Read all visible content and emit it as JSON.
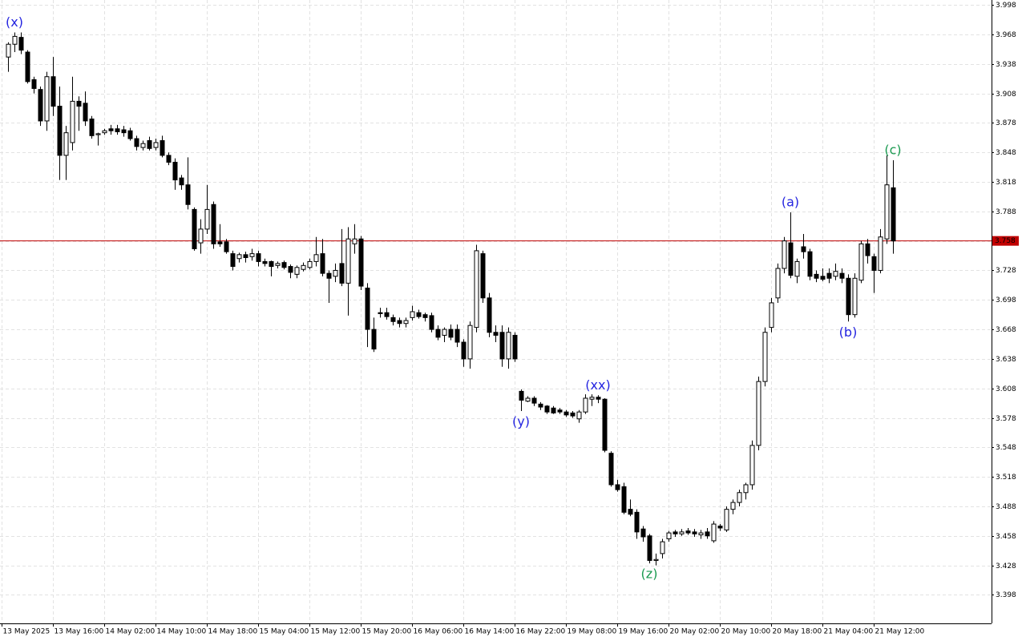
{
  "chart_data": {
    "type": "candlestick",
    "categories": [
      "13 May 2025",
      null,
      null,
      null,
      null,
      null,
      null,
      null,
      "13 May 16:00",
      null,
      null,
      null,
      null,
      null,
      null,
      null,
      "14 May 02:00",
      null,
      null,
      null,
      null,
      null,
      null,
      null,
      "14 May 10:00",
      null,
      null,
      null,
      null,
      null,
      null,
      null,
      "14 May 18:00",
      null,
      null,
      null,
      null,
      null,
      null,
      null,
      "15 May 04:00",
      null,
      null,
      null,
      null,
      null,
      null,
      null,
      "15 May 12:00",
      null,
      null,
      null,
      null,
      null,
      null,
      null,
      "15 May 20:00",
      null,
      null,
      null,
      null,
      null,
      null,
      null,
      "16 May 06:00",
      null,
      null,
      null,
      null,
      null,
      null,
      null,
      "16 May 14:00",
      null,
      null,
      null,
      null,
      null,
      null,
      null,
      "16 May 22:00",
      null,
      null,
      null,
      null,
      null,
      null,
      null,
      "19 May 08:00",
      null,
      null,
      null,
      null,
      null,
      null,
      null,
      "19 May 16:00",
      null,
      null,
      null,
      null,
      null,
      null,
      null,
      "20 May 02:00",
      null,
      null,
      null,
      null,
      null,
      null,
      null,
      "20 May 10:00",
      null,
      null,
      null,
      null,
      null,
      null,
      null,
      "20 May 18:00",
      null,
      null,
      null,
      null,
      null,
      null,
      null,
      "21 May 04:00",
      null,
      null,
      null,
      null,
      null,
      null,
      null,
      "21 May 12:00",
      null,
      null
    ],
    "open": [
      3.945,
      3.958,
      3.965,
      3.95,
      3.922,
      3.912,
      3.88,
      3.925,
      3.895,
      3.845,
      3.858,
      3.9,
      3.898,
      3.882,
      3.866,
      3.868,
      3.872,
      3.872,
      3.871,
      3.87,
      3.862,
      3.853,
      3.86,
      3.853,
      3.86,
      3.845,
      3.838,
      3.822,
      3.815,
      3.79,
      3.756,
      3.77,
      3.795,
      3.757,
      3.757,
      3.745,
      3.74,
      3.744,
      3.742,
      3.745,
      3.737,
      3.737,
      3.733,
      3.736,
      3.732,
      3.724,
      3.729,
      3.731,
      3.737,
      3.745,
      3.725,
      3.722,
      3.735,
      3.715,
      3.755,
      3.76,
      3.71,
      3.668,
      3.685,
      3.685,
      3.68,
      3.677,
      3.674,
      3.68,
      3.685,
      3.683,
      3.682,
      3.668,
      3.662,
      3.668,
      3.668,
      3.655,
      3.638,
      3.67,
      3.745,
      3.7,
      3.665,
      3.665,
      3.638,
      3.662,
      3.605,
      3.595,
      3.598,
      3.592,
      3.59,
      3.588,
      3.586,
      3.584,
      3.583,
      3.577,
      3.584,
      3.597,
      3.599,
      3.597,
      3.542,
      3.51,
      3.508,
      3.485,
      3.482,
      3.465,
      3.458,
      3.433,
      3.44,
      3.455,
      3.462,
      3.46,
      3.463,
      3.462,
      3.459,
      3.462,
      3.453,
      3.468,
      3.464,
      3.485,
      3.492,
      3.502,
      3.51,
      3.55,
      3.615,
      3.67,
      3.7,
      3.73,
      3.756,
      3.722,
      3.752,
      3.747,
      3.724,
      3.722,
      3.725,
      3.722,
      3.725,
      3.72,
      3.683,
      3.718,
      3.755,
      3.742,
      3.728,
      3.76,
      3.812
    ],
    "high": [
      3.96,
      3.97,
      3.97,
      3.952,
      3.925,
      3.915,
      3.93,
      3.945,
      3.915,
      3.875,
      3.925,
      3.905,
      3.91,
      3.885,
      3.868,
      3.872,
      3.876,
      3.876,
      3.875,
      3.873,
      3.865,
      3.86,
      3.864,
      3.862,
      3.865,
      3.848,
      3.842,
      3.825,
      3.843,
      3.792,
      3.78,
      3.815,
      3.798,
      3.775,
      3.76,
      3.748,
      3.746,
      3.747,
      3.75,
      3.748,
      3.74,
      3.738,
      3.737,
      3.738,
      3.734,
      3.733,
      3.736,
      3.74,
      3.762,
      3.76,
      3.728,
      3.735,
      3.77,
      3.772,
      3.775,
      3.763,
      3.715,
      3.68,
      3.69,
      3.69,
      3.683,
      3.68,
      3.68,
      3.692,
      3.688,
      3.685,
      3.685,
      3.672,
      3.67,
      3.673,
      3.673,
      3.658,
      3.676,
      3.754,
      3.748,
      3.705,
      3.672,
      3.672,
      3.67,
      3.665,
      3.607,
      3.6,
      3.6,
      3.594,
      3.591,
      3.59,
      3.588,
      3.586,
      3.585,
      3.586,
      3.602,
      3.602,
      3.601,
      3.598,
      3.544,
      3.515,
      3.512,
      3.495,
      3.485,
      3.468,
      3.46,
      3.44,
      3.455,
      3.463,
      3.464,
      3.465,
      3.466,
      3.465,
      3.464,
      3.466,
      3.473,
      3.47,
      3.488,
      3.495,
      3.505,
      3.512,
      3.555,
      3.62,
      3.67,
      3.7,
      3.735,
      3.762,
      3.787,
      3.74,
      3.765,
      3.75,
      3.728,
      3.73,
      3.73,
      3.735,
      3.73,
      3.724,
      3.725,
      3.758,
      3.76,
      3.745,
      3.77,
      3.845,
      3.84
    ],
    "low": [
      3.93,
      3.95,
      3.948,
      3.918,
      3.908,
      3.875,
      3.87,
      3.885,
      3.82,
      3.82,
      3.85,
      3.87,
      3.875,
      3.862,
      3.855,
      3.866,
      3.866,
      3.866,
      3.864,
      3.86,
      3.85,
      3.85,
      3.85,
      3.85,
      3.843,
      3.835,
      3.81,
      3.81,
      3.79,
      3.748,
      3.745,
      3.765,
      3.75,
      3.752,
      3.745,
      3.728,
      3.736,
      3.736,
      3.738,
      3.732,
      3.732,
      3.722,
      3.73,
      3.729,
      3.72,
      3.72,
      3.727,
      3.729,
      3.732,
      3.722,
      3.695,
      3.716,
      3.712,
      3.682,
      3.745,
      3.708,
      3.65,
      3.645,
      3.68,
      3.678,
      3.672,
      3.67,
      3.67,
      3.677,
      3.679,
      3.676,
      3.665,
      3.657,
      3.655,
      3.657,
      3.65,
      3.63,
      3.628,
      3.665,
      3.695,
      3.66,
      3.655,
      3.63,
      3.628,
      3.635,
      3.585,
      3.594,
      3.59,
      3.586,
      3.582,
      3.582,
      3.582,
      3.579,
      3.578,
      3.573,
      3.582,
      3.59,
      3.593,
      3.543,
      3.508,
      3.503,
      3.48,
      3.478,
      3.455,
      3.452,
      3.43,
      3.428,
      3.435,
      3.452,
      3.457,
      3.458,
      3.459,
      3.457,
      3.455,
      3.455,
      3.451,
      3.463,
      3.462,
      3.48,
      3.488,
      3.495,
      3.505,
      3.545,
      3.61,
      3.665,
      3.695,
      3.725,
      3.72,
      3.715,
      3.74,
      3.718,
      3.716,
      3.717,
      3.715,
      3.718,
      3.715,
      3.676,
      3.68,
      3.715,
      3.735,
      3.705,
      3.725,
      3.755,
      3.745
    ],
    "close": [
      3.958,
      3.966,
      3.952,
      3.92,
      3.913,
      3.88,
      3.925,
      3.895,
      3.845,
      3.868,
      3.9,
      3.895,
      3.88,
      3.865,
      3.867,
      3.87,
      3.87,
      3.869,
      3.868,
      3.862,
      3.854,
      3.857,
      3.852,
      3.858,
      3.845,
      3.838,
      3.82,
      3.815,
      3.795,
      3.75,
      3.77,
      3.79,
      3.755,
      3.755,
      3.747,
      3.732,
      3.744,
      3.741,
      3.745,
      3.737,
      3.735,
      3.732,
      3.735,
      3.731,
      3.726,
      3.731,
      3.733,
      3.737,
      3.744,
      3.725,
      3.72,
      3.728,
      3.715,
      3.76,
      3.76,
      3.712,
      3.668,
      3.648,
      3.684,
      3.681,
      3.676,
      3.674,
      3.677,
      3.686,
      3.681,
      3.68,
      3.668,
      3.66,
      3.668,
      3.66,
      3.655,
      3.638,
      3.672,
      3.748,
      3.7,
      3.665,
      3.662,
      3.638,
      3.665,
      3.638,
      3.596,
      3.598,
      3.593,
      3.589,
      3.584,
      3.583,
      3.584,
      3.581,
      3.58,
      3.584,
      3.598,
      3.599,
      3.597,
      3.545,
      3.51,
      3.505,
      3.482,
      3.48,
      3.462,
      3.457,
      3.433,
      3.434,
      3.452,
      3.461,
      3.46,
      3.462,
      3.461,
      3.46,
      3.461,
      3.458,
      3.47,
      3.466,
      3.485,
      3.492,
      3.502,
      3.51,
      3.55,
      3.615,
      3.665,
      3.695,
      3.73,
      3.758,
      3.723,
      3.737,
      3.747,
      3.722,
      3.72,
      3.719,
      3.72,
      3.727,
      3.72,
      3.683,
      3.72,
      3.755,
      3.743,
      3.728,
      3.762,
      3.815,
      3.758
    ],
    "wave_labels": [
      null,
      {
        "text": "(x)",
        "color": "#2424e0",
        "side": "above"
      },
      null,
      null,
      null,
      null,
      null,
      null,
      null,
      null,
      null,
      null,
      null,
      null,
      null,
      null,
      null,
      null,
      null,
      null,
      null,
      null,
      null,
      null,
      null,
      null,
      null,
      null,
      null,
      null,
      null,
      null,
      null,
      null,
      null,
      null,
      null,
      null,
      null,
      null,
      null,
      null,
      null,
      null,
      null,
      null,
      null,
      null,
      null,
      null,
      null,
      null,
      null,
      null,
      null,
      null,
      null,
      null,
      null,
      null,
      null,
      null,
      null,
      null,
      null,
      null,
      null,
      null,
      null,
      null,
      null,
      null,
      null,
      null,
      null,
      null,
      null,
      null,
      null,
      null,
      {
        "text": "(y)",
        "color": "#2424e0",
        "side": "below"
      },
      null,
      null,
      null,
      null,
      null,
      null,
      null,
      null,
      null,
      null,
      null,
      {
        "text": "(xx)",
        "color": "#2424e0",
        "side": "above"
      },
      null,
      null,
      null,
      null,
      null,
      null,
      null,
      {
        "text": "(z)",
        "color": "#1a9a50",
        "side": "below"
      },
      null,
      null,
      null,
      null,
      null,
      null,
      null,
      null,
      null,
      null,
      null,
      null,
      null,
      null,
      null,
      null,
      null,
      null,
      null,
      null,
      null,
      {
        "text": "(a)",
        "color": "#2424e0",
        "side": "above"
      },
      null,
      null,
      null,
      null,
      null,
      null,
      null,
      null,
      {
        "text": "(b)",
        "color": "#2424e0",
        "side": "below"
      },
      null,
      null,
      null,
      null,
      null,
      null,
      {
        "text": "(c)",
        "color": "#1a9a50",
        "side": "above"
      }
    ],
    "ylim": [
      3.369,
      4.003
    ],
    "yticks": [
      3.998,
      3.968,
      3.938,
      3.908,
      3.878,
      3.848,
      3.818,
      3.788,
      3.758,
      3.728,
      3.698,
      3.668,
      3.638,
      3.608,
      3.578,
      3.548,
      3.518,
      3.488,
      3.458,
      3.428,
      3.398
    ],
    "current_price": 3.758,
    "grid": true,
    "bull_color": "#ffffff",
    "bear_color": "#000000",
    "wick_color": "#000000",
    "price_line_color": "#c00000"
  }
}
